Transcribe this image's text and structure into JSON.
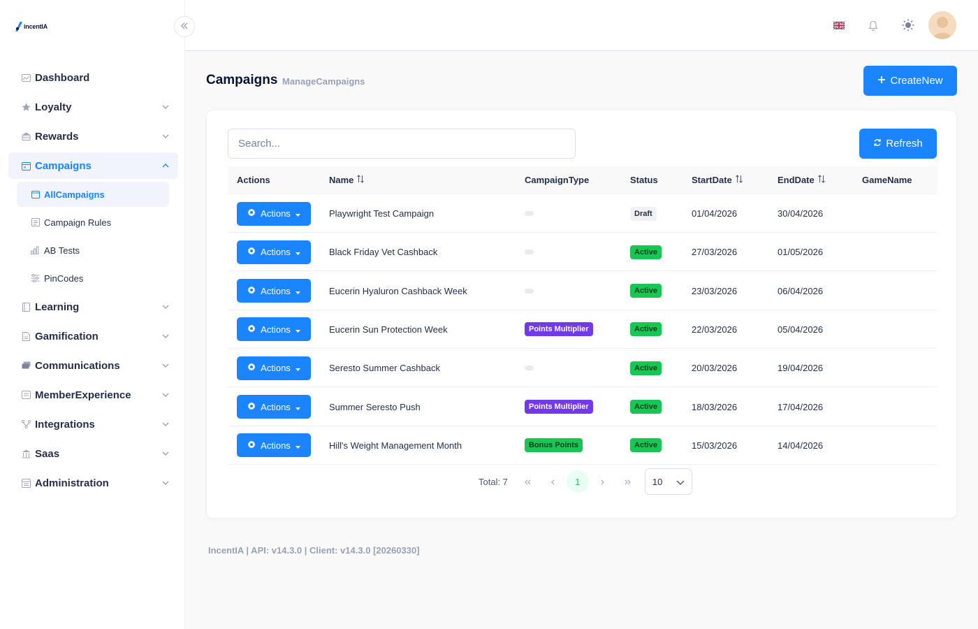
{
  "app": {
    "logo_text": "incentIA"
  },
  "sidebar": {
    "items": [
      {
        "label": "Dashboard",
        "icon": "chart-icon",
        "expandable": false
      },
      {
        "label": "Loyalty",
        "icon": "star-icon",
        "expandable": true
      },
      {
        "label": "Rewards",
        "icon": "gift-icon",
        "expandable": true
      },
      {
        "label": "Campaigns",
        "icon": "calendar-icon",
        "expandable": true,
        "active": true
      }
    ],
    "campaigns_sub": [
      {
        "label": "AllCampaigns",
        "icon": "calendar-icon",
        "active": true
      },
      {
        "label": "Campaign Rules",
        "icon": "document-icon"
      },
      {
        "label": "AB Tests",
        "icon": "bar-chart-icon"
      },
      {
        "label": "PinCodes",
        "icon": "sliders-icon"
      }
    ],
    "items_after": [
      {
        "label": "Learning",
        "icon": "book-icon"
      },
      {
        "label": "Gamification",
        "icon": "file-icon"
      },
      {
        "label": "Communications",
        "icon": "chat-icon"
      },
      {
        "label": "MemberExperience",
        "icon": "user-card-icon"
      },
      {
        "label": "Integrations",
        "icon": "network-icon"
      },
      {
        "label": "Saas",
        "icon": "bank-icon"
      },
      {
        "label": "Administration",
        "icon": "admin-icon"
      }
    ]
  },
  "header": {
    "icons": [
      "uk-flag-icon",
      "bell-icon",
      "sun-icon",
      "avatar"
    ]
  },
  "page": {
    "title": "Campaigns",
    "subtitle": "ManageCampaigns",
    "create_label": "CreateNew"
  },
  "table": {
    "search_placeholder": "Search...",
    "refresh_label": "Refresh",
    "columns": [
      "Actions",
      "Name",
      "CampaignType",
      "Status",
      "StartDate",
      "EndDate",
      "GameName"
    ],
    "action_label": "Actions",
    "rows": [
      {
        "name": "Playwright Test Campaign",
        "type": "",
        "status": "Draft",
        "start": "01/04/2026",
        "end": "30/04/2026",
        "game": ""
      },
      {
        "name": "Black Friday Vet Cashback",
        "type": "",
        "status": "Active",
        "start": "27/03/2026",
        "end": "01/05/2026",
        "game": ""
      },
      {
        "name": "Eucerin Hyaluron Cashback Week",
        "type": "",
        "status": "Active",
        "start": "23/03/2026",
        "end": "06/04/2026",
        "game": ""
      },
      {
        "name": "Eucerin Sun Protection Week",
        "type": "Points Multiplier",
        "status": "Active",
        "start": "22/03/2026",
        "end": "05/04/2026",
        "game": ""
      },
      {
        "name": "Seresto Summer Cashback",
        "type": "",
        "status": "Active",
        "start": "20/03/2026",
        "end": "19/04/2026",
        "game": ""
      },
      {
        "name": "Summer Seresto Push",
        "type": "Points Multiplier",
        "status": "Active",
        "start": "18/03/2026",
        "end": "17/04/2026",
        "game": ""
      },
      {
        "name": "Hill's Weight Management Month",
        "type": "Bonus Points",
        "status": "Active",
        "start": "15/03/2026",
        "end": "14/04/2026",
        "game": ""
      }
    ],
    "type_colors": {
      "Points Multiplier": "#7239ea",
      "Bonus Points": "#17c653"
    },
    "status_colors": {
      "Active": "#17c653",
      "Draft": "#f1f1f4"
    }
  },
  "pagination": {
    "total_label": "Total: 7",
    "current_page": "1",
    "page_size": "10"
  },
  "footer": {
    "text": "IncentIA | API: v14.3.0 | Client: v14.3.0 [20260330]"
  }
}
